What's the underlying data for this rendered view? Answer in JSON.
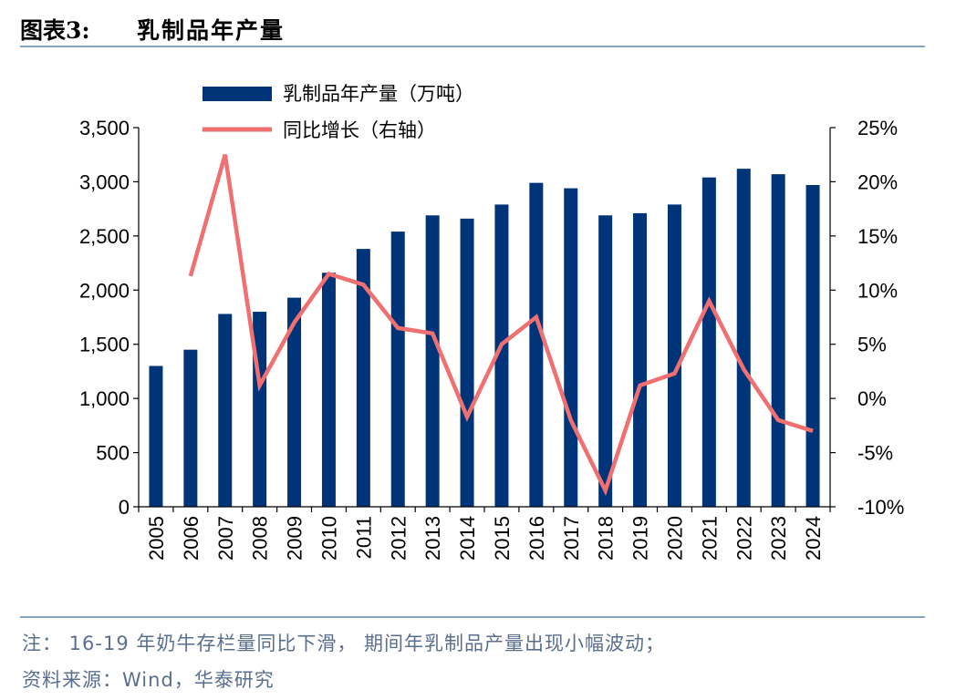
{
  "header": {
    "figure_label": "图表3:",
    "title": "乳制品年产量"
  },
  "chart_data": {
    "type": "bar",
    "categories": [
      "2005",
      "2006",
      "2007",
      "2008",
      "2009",
      "2010",
      "2011",
      "2012",
      "2013",
      "2014",
      "2015",
      "2016",
      "2017",
      "2018",
      "2019",
      "2020",
      "2021",
      "2022",
      "2023",
      "2024"
    ],
    "series": [
      {
        "name": "乳制品年产量（万吨）",
        "kind": "bar",
        "axis": "left",
        "color": "#003478",
        "values": [
          1300,
          1450,
          1780,
          1800,
          1930,
          2160,
          2380,
          2540,
          2690,
          2660,
          2790,
          2990,
          2940,
          2690,
          2710,
          2790,
          3040,
          3120,
          3070,
          2970
        ]
      },
      {
        "name": "同比增长（右轴）",
        "kind": "line",
        "axis": "right",
        "color": "#f06f70",
        "values": [
          null,
          11.3,
          22.5,
          1.2,
          7.0,
          11.5,
          10.5,
          6.5,
          6.0,
          -1.7,
          5.0,
          7.5,
          -2.0,
          -8.5,
          1.2,
          2.3,
          9.0,
          2.7,
          -2.0,
          -3.0
        ]
      }
    ],
    "left_axis": {
      "min": 0,
      "max": 3500,
      "ticks": [
        0,
        500,
        1000,
        1500,
        2000,
        2500,
        3000,
        3500
      ],
      "tick_labels": [
        "0",
        "500",
        "1,000",
        "1,500",
        "2,000",
        "2,500",
        "3,000",
        "3,500"
      ]
    },
    "right_axis": {
      "min": -10,
      "max": 25,
      "ticks": [
        -10,
        -5,
        0,
        5,
        10,
        15,
        20,
        25
      ],
      "tick_labels": [
        "-10%",
        "-5%",
        "0%",
        "5%",
        "10%",
        "15%",
        "20%",
        "25%"
      ]
    },
    "legend_position": "top-left"
  },
  "footer": {
    "note": "注： 16-19 年奶牛存栏量同比下滑， 期间年乳制品产量出现小幅波动；",
    "source": "资料来源：Wind，华泰研究"
  }
}
